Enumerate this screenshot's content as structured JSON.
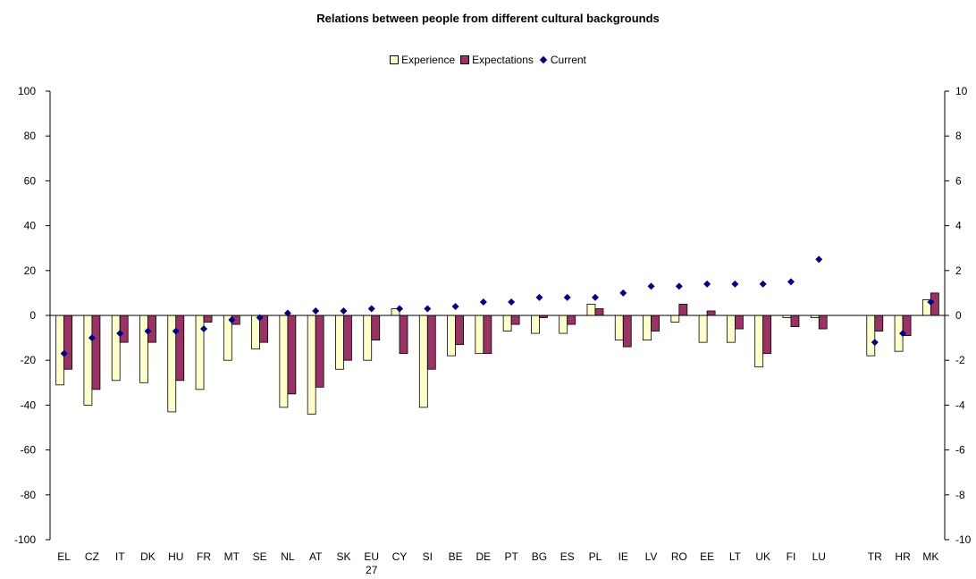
{
  "chart_data": {
    "type": "bar",
    "title": "Relations between people from different cultural backgrounds",
    "legend_position": "top",
    "categories": [
      "EL",
      "CZ",
      "IT",
      "DK",
      "HU",
      "FR",
      "MT",
      "SE",
      "NL",
      "AT",
      "SK",
      "EU 27",
      "CY",
      "SI",
      "BE",
      "DE",
      "PT",
      "BG",
      "ES",
      "PL",
      "IE",
      "LV",
      "RO",
      "EE",
      "LT",
      "UK",
      "FI",
      "LU",
      "",
      "TR",
      "HR",
      "MK"
    ],
    "series": [
      {
        "name": "Experience",
        "type": "bar",
        "axis": "left",
        "color": "#FFFFCC",
        "values": [
          -31,
          -40,
          -29,
          -30,
          -43,
          -33,
          -20,
          -15,
          -41,
          -44,
          -24,
          -20,
          3,
          -41,
          -18,
          -17,
          -7,
          -8,
          -8,
          5,
          -11,
          -11,
          -3,
          -12,
          -12,
          -23,
          -1,
          -1,
          null,
          -18,
          -16,
          7
        ]
      },
      {
        "name": "Expectations",
        "type": "bar",
        "axis": "left",
        "color": "#993366",
        "values": [
          -24,
          -33,
          -12,
          -12,
          -29,
          -3,
          -4,
          -12,
          -35,
          -32,
          -20,
          -11,
          -17,
          -24,
          -13,
          -17,
          -4,
          -1,
          -4,
          3,
          -14,
          -7,
          5,
          2,
          -6,
          -17,
          -5,
          -6,
          null,
          -7,
          -9,
          10
        ]
      },
      {
        "name": "Current",
        "type": "scatter",
        "axis": "right",
        "color": "#000080",
        "values": [
          -1.7,
          -1.0,
          -0.8,
          -0.7,
          -0.7,
          -0.6,
          -0.2,
          -0.1,
          0.1,
          0.2,
          0.2,
          0.3,
          0.3,
          0.3,
          0.4,
          0.6,
          0.6,
          0.8,
          0.8,
          0.8,
          1.0,
          1.3,
          1.3,
          1.4,
          1.4,
          1.4,
          1.5,
          2.5,
          null,
          -1.2,
          -0.8,
          0.6
        ]
      }
    ],
    "ylim": [
      -100,
      100
    ],
    "y_ticks": [
      -100,
      -80,
      -60,
      -40,
      -20,
      0,
      20,
      40,
      60,
      80,
      100
    ],
    "y2lim": [
      -10,
      10
    ],
    "y2_ticks": [
      -10,
      -8,
      -6,
      -4,
      -2,
      0,
      2,
      4,
      6,
      8,
      10
    ],
    "grid": false,
    "xlabel": "",
    "ylabel": ""
  }
}
